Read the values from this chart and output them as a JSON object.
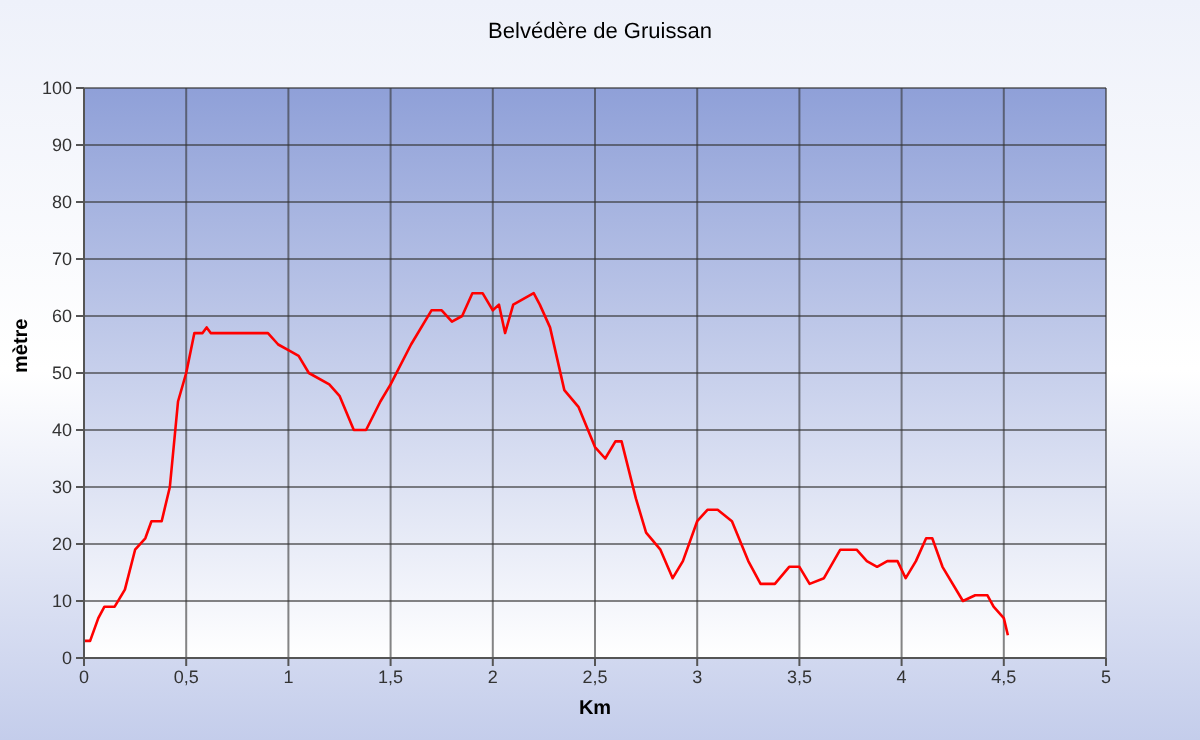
{
  "chart_data": {
    "type": "line",
    "title": "Belvédère de Gruissan",
    "xlabel": "Km",
    "ylabel": "mètre",
    "xlim": [
      0,
      5
    ],
    "xticks": [
      0,
      {
        "value": 0.5,
        "label": "0,5"
      },
      1,
      {
        "value": 1.5,
        "label": "1,5"
      },
      2,
      {
        "value": 2.5,
        "label": "2,5"
      },
      3,
      {
        "value": 3.5,
        "label": "3,5"
      },
      4,
      {
        "value": 4.5,
        "label": "4,5"
      },
      5
    ],
    "ylim": [
      0,
      100
    ],
    "yticks": [
      0,
      10,
      20,
      30,
      40,
      50,
      60,
      70,
      80,
      90,
      100
    ],
    "grid": true,
    "marker": "none",
    "line_style": "solid",
    "series": [
      {
        "color": "#ff0000",
        "x": [
          0,
          0.03,
          0.07,
          0.1,
          0.15,
          0.2,
          0.25,
          0.3,
          0.33,
          0.38,
          0.42,
          0.46,
          0.5,
          0.54,
          0.58,
          0.6,
          0.62,
          0.9,
          0.95,
          1.0,
          1.05,
          1.1,
          1.2,
          1.25,
          1.32,
          1.38,
          1.45,
          1.5,
          1.6,
          1.7,
          1.75,
          1.8,
          1.85,
          1.9,
          1.95,
          2.0,
          2.03,
          2.06,
          2.1,
          2.15,
          2.2,
          2.23,
          2.28,
          2.35,
          2.42,
          2.5,
          2.55,
          2.6,
          2.63,
          2.7,
          2.75,
          2.82,
          2.88,
          2.93,
          3.0,
          3.05,
          3.1,
          3.17,
          3.25,
          3.31,
          3.38,
          3.45,
          3.5,
          3.55,
          3.62,
          3.7,
          3.78,
          3.83,
          3.88,
          3.93,
          3.98,
          4.02,
          4.07,
          4.12,
          4.15,
          4.2,
          4.3,
          4.36,
          4.42,
          4.45,
          4.5,
          4.52
        ],
        "values": [
          3,
          3,
          7,
          9,
          9,
          12,
          19,
          21,
          24,
          24,
          30,
          45,
          50,
          57,
          57,
          58,
          57,
          57,
          55,
          54,
          53,
          50,
          48,
          46,
          40,
          40,
          45,
          48,
          55,
          61,
          61,
          59,
          60,
          64,
          64,
          61,
          62,
          57,
          62,
          63,
          64,
          62,
          58,
          47,
          44,
          37,
          35,
          38,
          38,
          28,
          22,
          19,
          14,
          17,
          24,
          26,
          26,
          24,
          17,
          13,
          13,
          16,
          16,
          13,
          14,
          19,
          19,
          17,
          16,
          17,
          17,
          14,
          17,
          21,
          21,
          16,
          10,
          11,
          11,
          9,
          7,
          4
        ]
      }
    ]
  }
}
